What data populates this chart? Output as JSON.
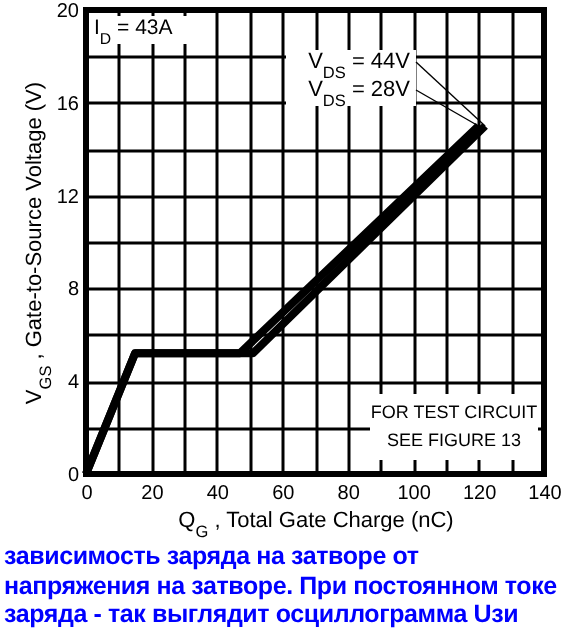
{
  "chart_data": {
    "type": "line",
    "xlabel": "Q$_{G}$ , Total Gate Charge (nC)",
    "ylabel": "V$_{GS}$ , Gate-to-Source Voltage (V)",
    "series": [
      {
        "name": "V$_{DS}$ = 44V",
        "color": "#000000",
        "x": [
          0,
          15,
          51,
          122
        ],
        "values": [
          0,
          5.2,
          5.2,
          15
        ]
      },
      {
        "name": "V$_{DS}$ = 28V",
        "color": "#000000",
        "x": [
          0,
          15,
          47,
          120
        ],
        "values": [
          0,
          5.2,
          5.2,
          15
        ]
      }
    ],
    "xlim": [
      0,
      140
    ],
    "xticks": [
      0,
      {
        "value": 10,
        "label": null
      },
      20,
      {
        "value": 30,
        "label": null
      },
      40,
      {
        "value": 50,
        "label": null
      },
      60,
      {
        "value": 70,
        "label": null
      },
      80,
      {
        "value": 90,
        "label": null
      },
      100,
      {
        "value": 110,
        "label": null
      },
      120,
      {
        "value": 130,
        "label": null
      },
      140
    ],
    "ylim": [
      0,
      20
    ],
    "yticks": [
      0,
      {
        "value": 2,
        "label": null
      },
      4,
      {
        "value": 6,
        "label": null
      },
      8,
      {
        "value": 10,
        "label": null
      },
      12,
      {
        "value": 14,
        "label": null
      },
      16,
      {
        "value": 18,
        "label": null
      },
      20
    ],
    "grid": true,
    "marker": "none",
    "line_style": "solid",
    "annotations": [
      "I$_{D}$ = 43A",
      "FOR TEST CIRCUIT\nSEE FIGURE 13",
      "зависимость заряда на затворе от напряжения на затворе. При постоянном токе заряда - так выглядит осциллограмма Uзи"
    ]
  }
}
